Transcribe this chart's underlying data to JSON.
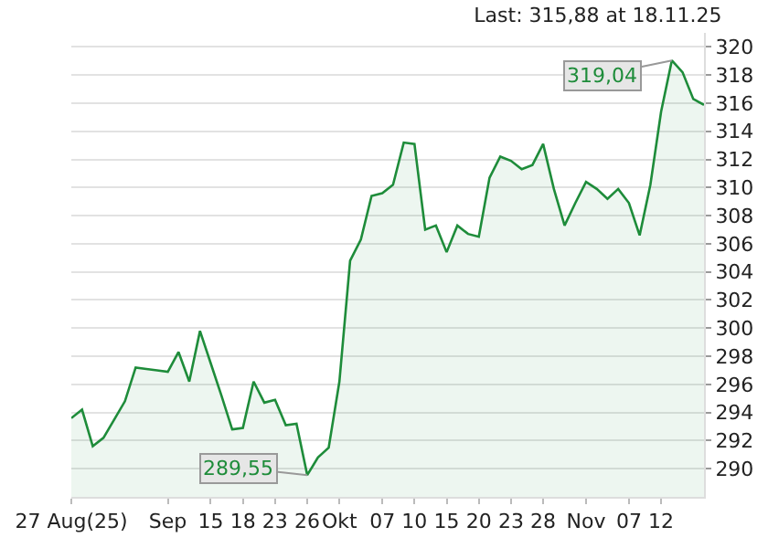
{
  "chart_data": {
    "type": "area",
    "title": "Last: 315,88 at 18.11.25",
    "categories": [
      "27 Aug(25)",
      null,
      null,
      null,
      null,
      null,
      null,
      null,
      null,
      "Sep",
      null,
      null,
      null,
      "15",
      null,
      null,
      "18",
      null,
      null,
      "23",
      null,
      null,
      "26",
      null,
      null,
      "Okt",
      null,
      null,
      null,
      "07",
      null,
      null,
      "10",
      null,
      null,
      "15",
      null,
      null,
      "20",
      null,
      null,
      "23",
      null,
      null,
      "28",
      null,
      null,
      null,
      "Nov",
      null,
      null,
      null,
      "07",
      null,
      null,
      "12",
      null,
      null,
      null,
      null
    ],
    "series": [
      {
        "color": "#1e8c3a",
        "values": [
          293.6,
          294.2,
          291.6,
          292.2,
          293.5,
          294.8,
          297.2,
          297.1,
          297.0,
          296.9,
          298.3,
          296.2,
          299.8,
          297.5,
          295.2,
          292.8,
          292.9,
          296.2,
          294.7,
          294.9,
          293.1,
          293.2,
          289.55,
          290.8,
          291.5,
          296.2,
          304.8,
          306.3,
          309.4,
          309.6,
          310.2,
          313.2,
          313.1,
          307.0,
          307.3,
          305.4,
          307.3,
          306.7,
          306.5,
          310.7,
          312.2,
          311.9,
          311.3,
          311.6,
          313.1,
          309.9,
          307.3,
          308.9,
          310.4,
          309.9,
          309.2,
          309.9,
          308.9,
          306.6,
          310.2,
          315.4,
          319.04,
          318.2,
          316.3,
          315.88
        ]
      }
    ],
    "ylim": [
      288,
      321
    ],
    "yticks": [
      290,
      292,
      294,
      296,
      298,
      300,
      302,
      304,
      306,
      308,
      310,
      312,
      314,
      316,
      318,
      320
    ],
    "annotations": [
      "319,04",
      "289,55"
    ],
    "grid": "y",
    "legend": false
  }
}
